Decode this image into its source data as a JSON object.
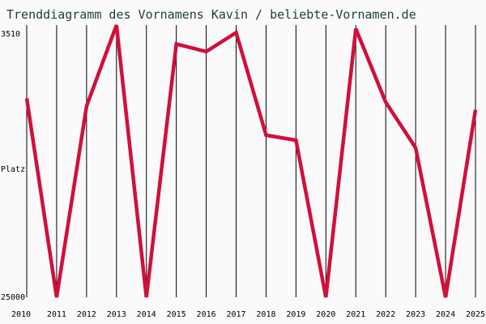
{
  "chart_data": {
    "type": "line",
    "title": "Trenddiagramm des Vornamens Kavin / beliebte-Vornamen.de",
    "ylabel": "Platz",
    "x": [
      "2010",
      "2011",
      "2012",
      "2013",
      "2014",
      "2015",
      "2016",
      "2017",
      "2018",
      "2019",
      "2020",
      "2021",
      "2022",
      "2023",
      "2024",
      "2025"
    ],
    "values": [
      9300,
      25000,
      9900,
      3510,
      25000,
      5000,
      5600,
      4100,
      12200,
      12600,
      25000,
      3800,
      9600,
      13200,
      25000,
      10200
    ],
    "ylim": [
      3510,
      25000
    ],
    "y_inverted": true,
    "y_tick_labels": [
      "3510",
      "25000"
    ],
    "grid": "vertical",
    "line_color": "#d0103a",
    "axis_color": "#000000"
  }
}
